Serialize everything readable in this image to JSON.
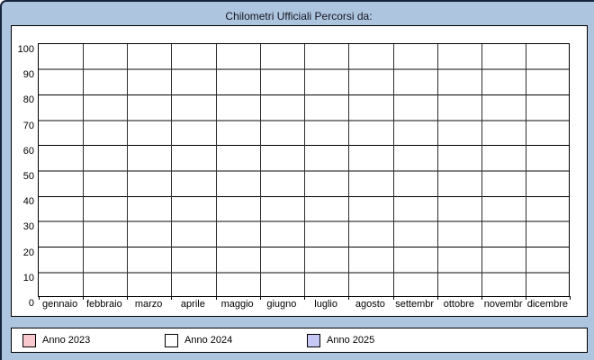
{
  "window": {
    "background_color": "#aec5e0",
    "frame_color": "#17243e"
  },
  "chart_data": {
    "type": "line",
    "title": "Chilometri Ufficiali Percorsi da:",
    "categories": [
      "gennaio",
      "febbraio",
      "marzo",
      "aprile",
      "maggio",
      "giugno",
      "luglio",
      "agosto",
      "settembr",
      "ottobre",
      "novembr",
      "dicembre"
    ],
    "y_ticks": [
      0,
      10,
      20,
      30,
      40,
      50,
      60,
      70,
      80,
      90,
      100
    ],
    "ylim": [
      0,
      100
    ],
    "xlabel": "",
    "ylabel": "",
    "grid": true,
    "gridline_color_major": "#000000",
    "gridline_color_minor": "#848484",
    "legend_position": "bottom",
    "series": [
      {
        "name": "Anno 2023",
        "color": "#f8c8ce",
        "values": []
      },
      {
        "name": "Anno 2024",
        "color": "#fdfefd",
        "values": []
      },
      {
        "name": "Anno 2025",
        "color": "#c8c8f4",
        "values": []
      }
    ]
  }
}
